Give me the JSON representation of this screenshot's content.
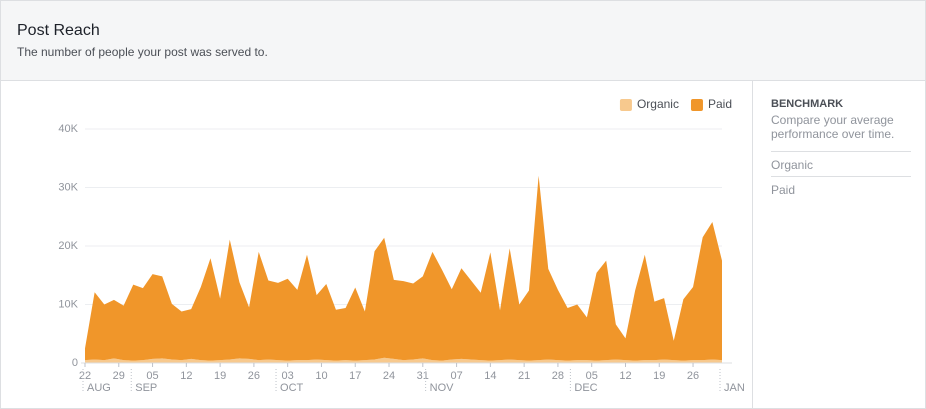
{
  "header": {
    "title": "Post Reach",
    "subtitle": "The number of people your post was served to."
  },
  "sidebar": {
    "title": "BENCHMARK",
    "description": "Compare your average performance over time.",
    "items": [
      "Organic",
      "Paid"
    ]
  },
  "chart_data": {
    "type": "area",
    "stacked": true,
    "legend": "top-right",
    "grid": true,
    "x": [
      "Aug 22",
      "Aug 24",
      "Aug 26",
      "Aug 28",
      "Aug 30",
      "Sep 1",
      "Sep 3",
      "Sep 5",
      "Sep 7",
      "Sep 9",
      "Sep 11",
      "Sep 13",
      "Sep 15",
      "Sep 17",
      "Sep 19",
      "Sep 21",
      "Sep 23",
      "Sep 25",
      "Sep 27",
      "Sep 29",
      "Oct 1",
      "Oct 3",
      "Oct 5",
      "Oct 7",
      "Oct 9",
      "Oct 11",
      "Oct 13",
      "Oct 15",
      "Oct 17",
      "Oct 19",
      "Oct 21",
      "Oct 23",
      "Oct 25",
      "Oct 27",
      "Oct 29",
      "Oct 31",
      "Nov 2",
      "Nov 4",
      "Nov 6",
      "Nov 8",
      "Nov 10",
      "Nov 12",
      "Nov 14",
      "Nov 16",
      "Nov 18",
      "Nov 20",
      "Nov 22",
      "Nov 24",
      "Nov 26",
      "Nov 28",
      "Nov 30",
      "Dec 2",
      "Dec 4",
      "Dec 6",
      "Dec 8",
      "Dec 10",
      "Dec 12",
      "Dec 14",
      "Dec 16",
      "Dec 18",
      "Dec 20",
      "Dec 22",
      "Dec 24",
      "Dec 26",
      "Dec 28",
      "Dec 30",
      "Jan 1"
    ],
    "series": [
      {
        "name": "Organic",
        "color": "#f7c98e",
        "values": [
          500,
          600,
          500,
          800,
          500,
          400,
          500,
          700,
          800,
          600,
          500,
          700,
          500,
          400,
          500,
          600,
          800,
          700,
          500,
          600,
          500,
          400,
          500,
          500,
          600,
          500,
          400,
          500,
          400,
          500,
          600,
          900,
          700,
          500,
          600,
          800,
          500,
          400,
          600,
          700,
          600,
          500,
          400,
          500,
          600,
          500,
          400,
          500,
          600,
          500,
          400,
          500,
          500,
          400,
          500,
          600,
          500,
          400,
          500,
          500,
          600,
          500,
          400,
          500,
          500,
          600,
          500
        ]
      },
      {
        "name": "Paid",
        "color": "#f0962a",
        "values": [
          2000,
          11500,
          9500,
          10000,
          9300,
          13000,
          12300,
          14500,
          14000,
          9500,
          8300,
          8500,
          12500,
          17500,
          10500,
          20500,
          13000,
          8800,
          18500,
          13500,
          13200,
          14000,
          12000,
          18000,
          11000,
          13000,
          8700,
          8900,
          12500,
          8300,
          18500,
          20500,
          13500,
          13500,
          13000,
          14000,
          18500,
          15500,
          12000,
          15500,
          13500,
          11500,
          18500,
          8500,
          19000,
          9500,
          12000,
          31500,
          15500,
          12000,
          9000,
          9500,
          7300,
          15000,
          17000,
          6000,
          3700,
          12000,
          18000,
          10000,
          10500,
          3300,
          10500,
          12500,
          21000,
          23500,
          17000
        ]
      }
    ],
    "xlim": [
      "Aug 22",
      "Jan 1"
    ],
    "xticks": [
      {
        "value": "Aug 22",
        "label": "22"
      },
      {
        "value": "Aug 29",
        "label": "29"
      },
      {
        "value": "Sep 5",
        "label": "05"
      },
      {
        "value": "Sep 12",
        "label": "12"
      },
      {
        "value": "Sep 19",
        "label": "19"
      },
      {
        "value": "Sep 26",
        "label": "26"
      },
      {
        "value": "Oct 3",
        "label": "03"
      },
      {
        "value": "Oct 10",
        "label": "10"
      },
      {
        "value": "Oct 17",
        "label": "17"
      },
      {
        "value": "Oct 24",
        "label": "24"
      },
      {
        "value": "Oct 31",
        "label": "31"
      },
      {
        "value": "Nov 7",
        "label": "07"
      },
      {
        "value": "Nov 14",
        "label": "14"
      },
      {
        "value": "Nov 21",
        "label": "21"
      },
      {
        "value": "Nov 28",
        "label": "28"
      },
      {
        "value": "Dec 5",
        "label": "05"
      },
      {
        "value": "Dec 12",
        "label": "12"
      },
      {
        "value": "Dec 19",
        "label": "19"
      },
      {
        "value": "Dec 26",
        "label": "26"
      }
    ],
    "month_ticks": [
      {
        "value": "Aug 22",
        "label": "AUG"
      },
      {
        "value": "Sep 1",
        "label": "SEP"
      },
      {
        "value": "Oct 1",
        "label": "OCT"
      },
      {
        "value": "Nov 1",
        "label": "NOV"
      },
      {
        "value": "Dec 1",
        "label": "DEC"
      },
      {
        "value": "Jan 1",
        "label": "JAN"
      }
    ],
    "ylim": [
      0,
      40000
    ],
    "yticks": [
      0,
      {
        "value": 10000,
        "label": "10K"
      },
      {
        "value": 20000,
        "label": "20K"
      },
      {
        "value": 30000,
        "label": "30K"
      },
      {
        "value": 40000,
        "label": "40K"
      }
    ]
  }
}
